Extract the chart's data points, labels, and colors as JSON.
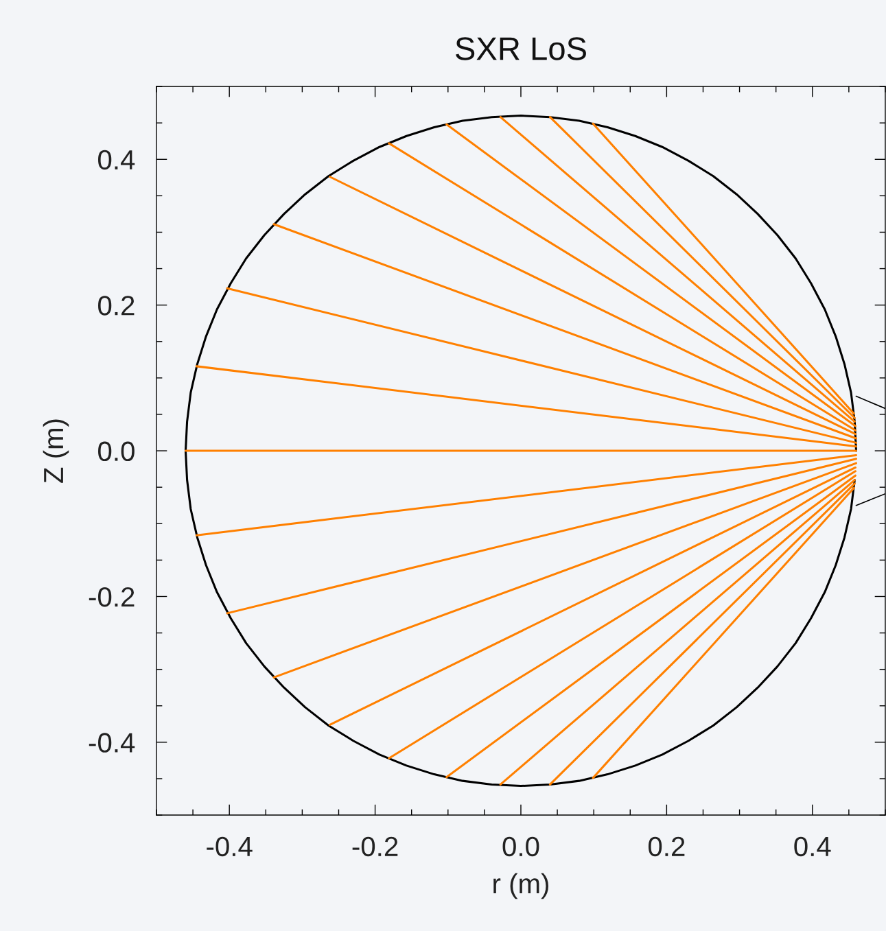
{
  "chart_data": {
    "type": "line",
    "title": "SXR LoS",
    "xlabel": "r (m)",
    "ylabel": "Z (m)",
    "xlim": [
      -0.5,
      0.5
    ],
    "ylim": [
      -0.5,
      0.5
    ],
    "xticks": [
      -0.4,
      -0.2,
      {
        "value": 0,
        "label": "0.0"
      },
      0.2,
      0.4
    ],
    "yticks": [
      -0.4,
      -0.2,
      {
        "value": 0,
        "label": "0.0"
      },
      0.2,
      0.4
    ],
    "grid": false,
    "legend": false,
    "marker": "none",
    "line_style": "solid",
    "series": [
      {
        "color": "#000000",
        "x": [
          0.46,
          0.458,
          0.453,
          0.444,
          0.432,
          0.417,
          0.398,
          0.377,
          0.352,
          0.325,
          0.296,
          0.264,
          0.23,
          0.194,
          0.157,
          0.119,
          0.08,
          0.04,
          0.0,
          -0.04,
          -0.08,
          -0.119,
          -0.157,
          -0.194,
          -0.23,
          -0.264,
          -0.296,
          -0.325,
          -0.352,
          -0.377,
          -0.398,
          -0.417,
          -0.432,
          -0.444,
          -0.453,
          -0.458,
          -0.46,
          -0.458,
          -0.453,
          -0.444,
          -0.432,
          -0.417,
          -0.398,
          -0.377,
          -0.352,
          -0.325,
          -0.296,
          -0.264,
          -0.23,
          -0.194,
          -0.157,
          -0.119,
          -0.08,
          -0.04,
          0.0,
          0.04,
          0.08,
          0.119,
          0.157,
          0.194,
          0.23,
          0.264,
          0.296,
          0.325,
          0.352,
          0.377,
          0.398,
          0.417,
          0.432,
          0.444,
          0.453,
          0.458
        ],
        "values": [
          0.0,
          0.04,
          0.08,
          0.119,
          0.157,
          0.194,
          0.23,
          0.264,
          0.296,
          0.325,
          0.352,
          0.377,
          0.398,
          0.417,
          0.432,
          0.444,
          0.453,
          0.458,
          0.46,
          0.458,
          0.453,
          0.444,
          0.432,
          0.417,
          0.398,
          0.377,
          0.352,
          0.325,
          0.296,
          0.264,
          0.23,
          0.194,
          0.157,
          0.119,
          0.08,
          0.04,
          0.0,
          -0.04,
          -0.08,
          -0.119,
          -0.157,
          -0.194,
          -0.23,
          -0.264,
          -0.296,
          -0.325,
          -0.352,
          -0.377,
          -0.398,
          -0.417,
          -0.432,
          -0.444,
          -0.453,
          -0.458,
          -0.46,
          -0.458,
          -0.453,
          -0.444,
          -0.432,
          -0.417,
          -0.398,
          -0.377,
          -0.352,
          -0.325,
          -0.296,
          -0.264,
          -0.23,
          -0.194,
          -0.157,
          -0.119,
          -0.08,
          -0.04
        ]
      },
      {
        "color": "#ff8000",
        "x": [
          0.099,
          0.457
        ],
        "values": [
          0.449,
          0.051
        ]
      },
      {
        "color": "#ff8000",
        "x": [
          0.04,
          0.458
        ],
        "values": [
          0.458,
          0.045
        ]
      },
      {
        "color": "#ff8000",
        "x": [
          -0.028,
          0.458
        ],
        "values": [
          0.458,
          0.04
        ]
      },
      {
        "color": "#ff8000",
        "x": [
          -0.102,
          0.459
        ],
        "values": [
          0.448,
          0.034
        ]
      },
      {
        "color": "#ff8000",
        "x": [
          -0.181,
          0.459
        ],
        "values": [
          0.422,
          0.028
        ]
      },
      {
        "color": "#ff8000",
        "x": [
          -0.262,
          0.459
        ],
        "values": [
          0.376,
          0.023
        ]
      },
      {
        "color": "#ff8000",
        "x": [
          -0.339,
          0.46
        ],
        "values": [
          0.311,
          0.017
        ]
      },
      {
        "color": "#ff8000",
        "x": [
          -0.403,
          0.46
        ],
        "values": [
          0.223,
          0.011
        ]
      },
      {
        "color": "#ff8000",
        "x": [
          -0.445,
          0.46
        ],
        "values": [
          0.116,
          0.006
        ]
      },
      {
        "color": "#ff8000",
        "x": [
          -0.46,
          0.46
        ],
        "values": [
          0.0,
          0.0
        ]
      },
      {
        "color": "#ff8000",
        "x": [
          -0.445,
          0.46
        ],
        "values": [
          -0.116,
          -0.006
        ]
      },
      {
        "color": "#ff8000",
        "x": [
          -0.403,
          0.46
        ],
        "values": [
          -0.223,
          -0.011
        ]
      },
      {
        "color": "#ff8000",
        "x": [
          -0.339,
          0.46
        ],
        "values": [
          -0.311,
          -0.017
        ]
      },
      {
        "color": "#ff8000",
        "x": [
          -0.262,
          0.459
        ],
        "values": [
          -0.376,
          -0.023
        ]
      },
      {
        "color": "#ff8000",
        "x": [
          -0.181,
          0.459
        ],
        "values": [
          -0.422,
          -0.028
        ]
      },
      {
        "color": "#ff8000",
        "x": [
          -0.102,
          0.459
        ],
        "values": [
          -0.448,
          -0.034
        ]
      },
      {
        "color": "#ff8000",
        "x": [
          -0.028,
          0.458
        ],
        "values": [
          -0.458,
          -0.04
        ]
      },
      {
        "color": "#ff8000",
        "x": [
          0.04,
          0.458
        ],
        "values": [
          -0.458,
          -0.045
        ]
      },
      {
        "color": "#ff8000",
        "x": [
          0.099,
          0.457
        ],
        "values": [
          -0.449,
          -0.051
        ]
      },
      {
        "color": "#000000",
        "x": [
          0.46,
          0.5
        ],
        "values": [
          0.075,
          0.058
        ]
      },
      {
        "color": "#000000",
        "x": [
          0.46,
          0.5
        ],
        "values": [
          -0.075,
          -0.059
        ]
      }
    ]
  }
}
